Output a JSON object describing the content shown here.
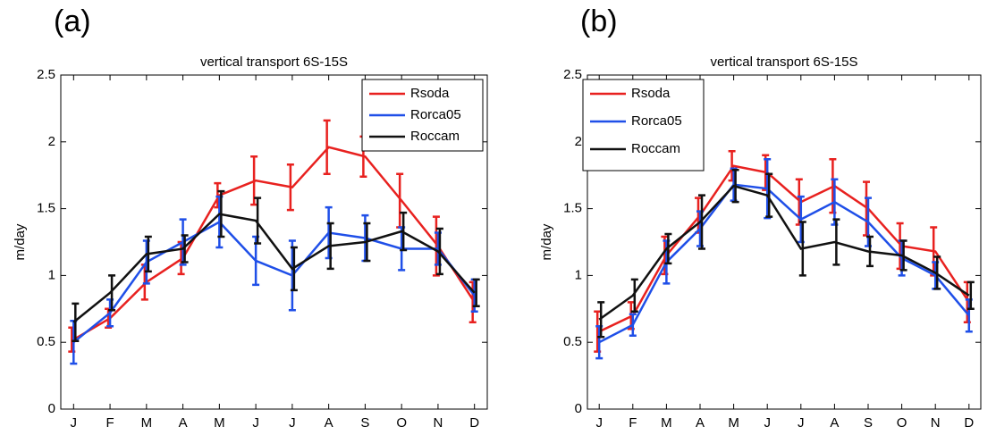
{
  "chart_data": [
    {
      "type": "line",
      "panel_label": "(a)",
      "title": "vertical transport 6S-15S",
      "ylabel": "m/day",
      "categories": [
        "J",
        "F",
        "M",
        "A",
        "M",
        "J",
        "J",
        "A",
        "S",
        "O",
        "N",
        "D"
      ],
      "ylim": [
        0,
        2.5
      ],
      "yticks": [
        0,
        0.5,
        1,
        1.5,
        2,
        2.5
      ],
      "legend": "upper right",
      "series": [
        {
          "name": "Rsoda",
          "color": "#e8211f",
          "values": [
            0.52,
            0.68,
            0.95,
            1.13,
            1.6,
            1.71,
            1.66,
            1.96,
            1.89,
            1.56,
            1.22,
            0.8
          ],
          "errors": [
            0.09,
            0.07,
            0.13,
            0.12,
            0.09,
            0.18,
            0.17,
            0.2,
            0.15,
            0.2,
            0.22,
            0.15
          ]
        },
        {
          "name": "Rorca05",
          "color": "#1f4fe8",
          "values": [
            0.5,
            0.72,
            1.1,
            1.25,
            1.4,
            1.11,
            1.0,
            1.32,
            1.28,
            1.2,
            1.2,
            0.85
          ],
          "errors": [
            0.16,
            0.1,
            0.16,
            0.17,
            0.19,
            0.18,
            0.26,
            0.19,
            0.17,
            0.16,
            0.12,
            0.12
          ]
        },
        {
          "name": "Roccam",
          "color": "#111111",
          "values": [
            0.65,
            0.87,
            1.16,
            1.2,
            1.46,
            1.41,
            1.05,
            1.22,
            1.25,
            1.33,
            1.18,
            0.87
          ],
          "errors": [
            0.14,
            0.13,
            0.13,
            0.1,
            0.17,
            0.17,
            0.16,
            0.17,
            0.14,
            0.14,
            0.17,
            0.1
          ]
        }
      ]
    },
    {
      "type": "line",
      "panel_label": "(b)",
      "title": "vertical transport 6S-15S",
      "ylabel": "m/day",
      "categories": [
        "J",
        "F",
        "M",
        "A",
        "M",
        "J",
        "J",
        "A",
        "S",
        "O",
        "N",
        "D"
      ],
      "ylim": [
        0,
        2.5
      ],
      "yticks": [
        0,
        0.5,
        1,
        1.5,
        2,
        2.5
      ],
      "legend": "upper left",
      "series": [
        {
          "name": "Rsoda",
          "color": "#e8211f",
          "values": [
            0.58,
            0.7,
            1.15,
            1.45,
            1.82,
            1.77,
            1.55,
            1.67,
            1.5,
            1.22,
            1.18,
            0.8
          ],
          "errors": [
            0.15,
            0.1,
            0.14,
            0.13,
            0.11,
            0.13,
            0.17,
            0.2,
            0.2,
            0.17,
            0.18,
            0.15
          ]
        },
        {
          "name": "Rorca05",
          "color": "#1f4fe8",
          "values": [
            0.5,
            0.63,
            1.1,
            1.35,
            1.68,
            1.65,
            1.42,
            1.55,
            1.4,
            1.13,
            1.0,
            0.7
          ],
          "errors": [
            0.12,
            0.08,
            0.16,
            0.13,
            0.12,
            0.22,
            0.17,
            0.17,
            0.18,
            0.13,
            0.1,
            0.12
          ]
        },
        {
          "name": "Roccam",
          "color": "#111111",
          "values": [
            0.67,
            0.85,
            1.2,
            1.4,
            1.67,
            1.6,
            1.2,
            1.25,
            1.18,
            1.15,
            1.02,
            0.85
          ],
          "errors": [
            0.13,
            0.12,
            0.11,
            0.2,
            0.12,
            0.16,
            0.2,
            0.17,
            0.11,
            0.11,
            0.12,
            0.1
          ]
        }
      ]
    }
  ]
}
